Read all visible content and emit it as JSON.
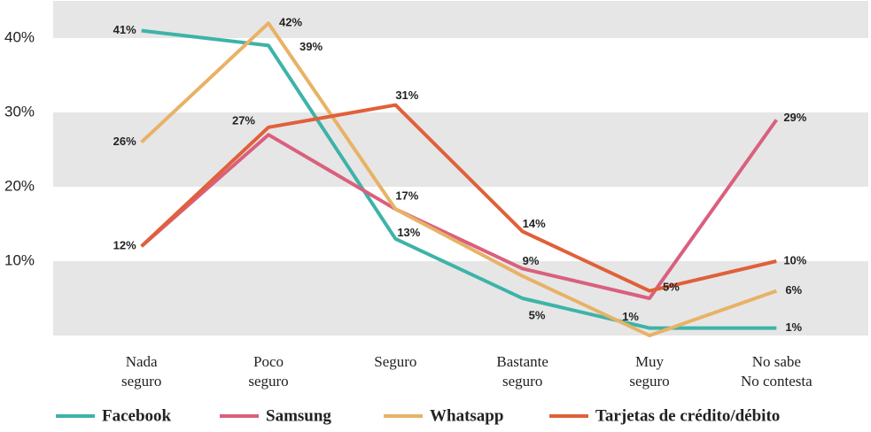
{
  "chart_data": {
    "type": "line",
    "categories": [
      [
        "Nada",
        "seguro"
      ],
      [
        "Poco",
        "seguro"
      ],
      [
        "Seguro"
      ],
      [
        "Bastante",
        "seguro"
      ],
      [
        "Muy",
        "seguro"
      ],
      [
        "No sabe",
        "No contesta"
      ]
    ],
    "series": [
      {
        "name": "Facebook",
        "color": "#3db3a8",
        "values": [
          41,
          39,
          13,
          5,
          1,
          1
        ],
        "value_labels": [
          "41%",
          "39%",
          "13%",
          "5%",
          "1%",
          "1%"
        ]
      },
      {
        "name": "Samsung",
        "color": "#d9607e",
        "values": [
          12,
          27,
          17,
          9,
          5,
          29
        ],
        "value_labels": [
          "12%",
          "27%",
          "17%",
          "9%",
          "5%",
          "29%"
        ]
      },
      {
        "name": "Whatsapp",
        "color": "#e8b266",
        "values": [
          26,
          42,
          17,
          8,
          0,
          6
        ],
        "value_labels": [
          "26%",
          "42%",
          null,
          null,
          null,
          "6%"
        ]
      },
      {
        "name": "Tarjetas de crédito/débito",
        "color": "#e0603a",
        "values": [
          12,
          28,
          31,
          14,
          6,
          10
        ],
        "value_labels": [
          null,
          null,
          "31%",
          "14%",
          null,
          "10%"
        ]
      }
    ],
    "ylim": [
      0,
      45
    ],
    "yticks": [
      {
        "value": 10,
        "label": "10%"
      },
      {
        "value": 20,
        "label": "20%"
      },
      {
        "value": 30,
        "label": "30%"
      },
      {
        "value": 40,
        "label": "40%"
      }
    ],
    "grid": "bands",
    "legend": "bottom"
  }
}
